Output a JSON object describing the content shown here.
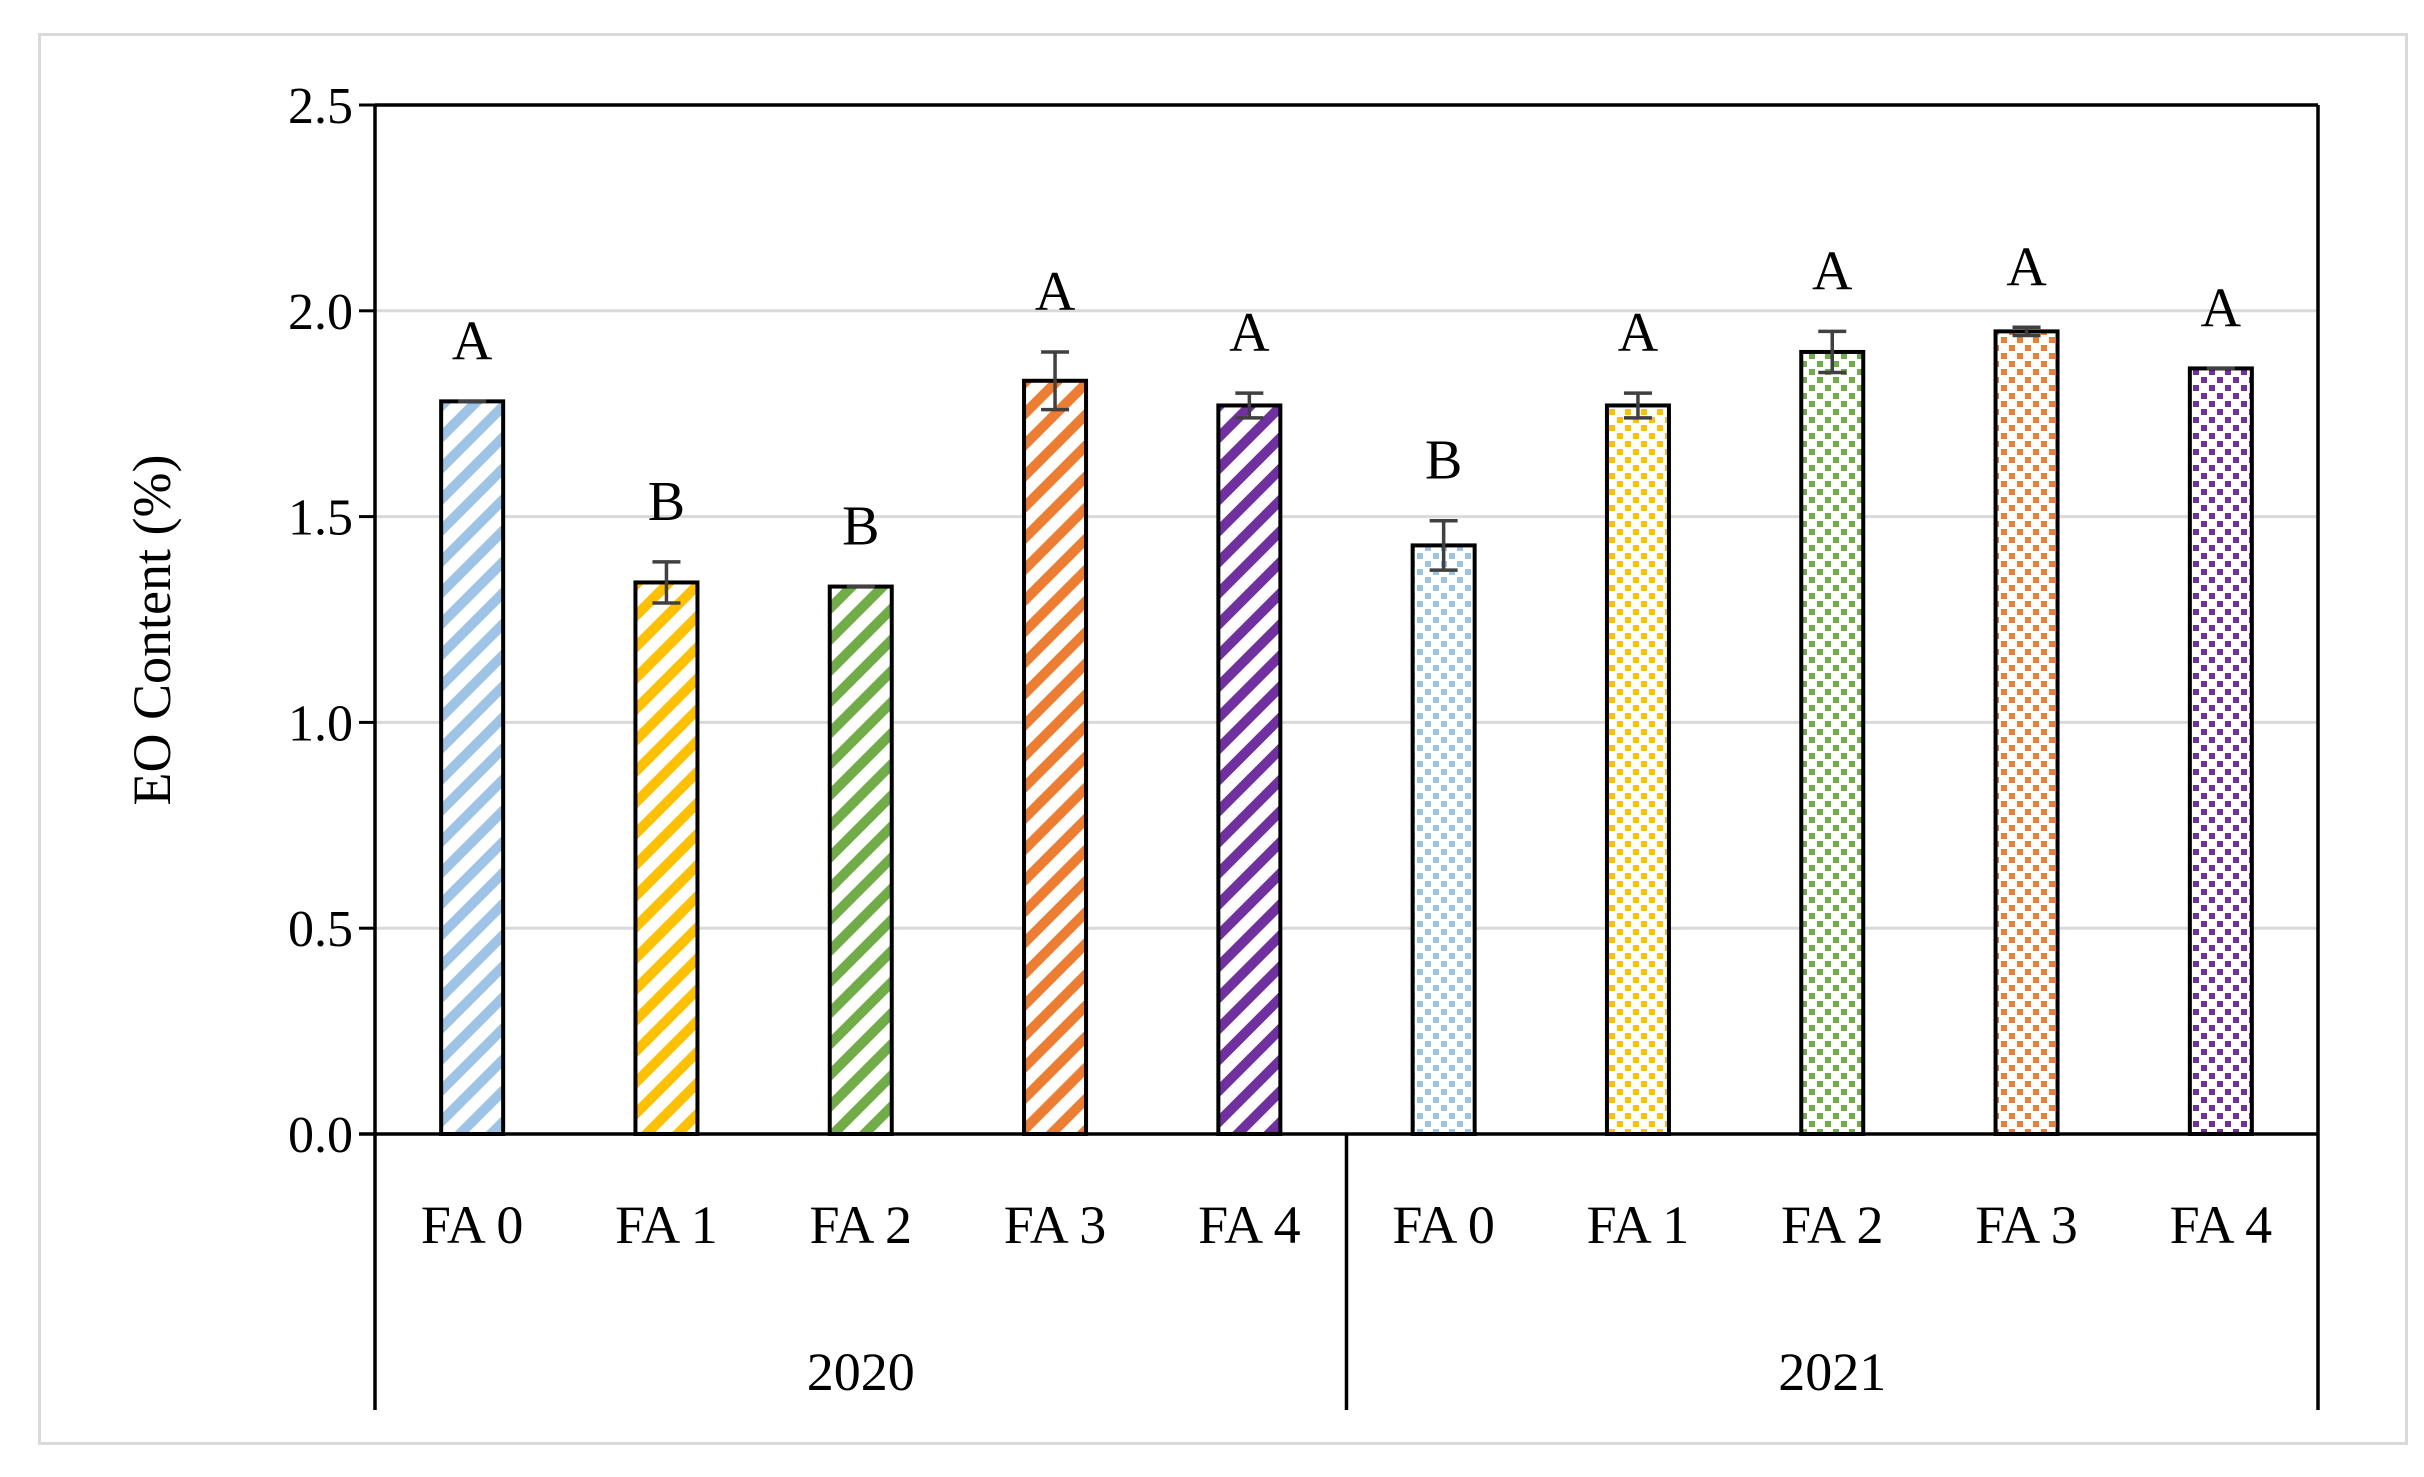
{
  "chart_data": {
    "type": "bar",
    "ylabel": "EO Content (%)",
    "ylim": [
      0,
      2.5
    ],
    "yticks": [
      "0.0",
      "0.5",
      "1.0",
      "1.5",
      "2.0",
      "2.5"
    ],
    "grid": true,
    "groups": [
      {
        "label": "2020",
        "bars": [
          {
            "category": "FA 0",
            "value": 1.78,
            "error": 0.0,
            "letter": "A",
            "color": "#9dc3e6",
            "pattern": "diagonal"
          },
          {
            "category": "FA 1",
            "value": 1.34,
            "error": 0.05,
            "letter": "B",
            "color": "#ffc000",
            "pattern": "diagonal"
          },
          {
            "category": "FA 2",
            "value": 1.33,
            "error": 0.0,
            "letter": "B",
            "color": "#70ad47",
            "pattern": "diagonal"
          },
          {
            "category": "FA 3",
            "value": 1.83,
            "error": 0.07,
            "letter": "A",
            "color": "#ed7d31",
            "pattern": "diagonal"
          },
          {
            "category": "FA 4",
            "value": 1.77,
            "error": 0.03,
            "letter": "A",
            "color": "#7030a0",
            "pattern": "diagonal"
          }
        ]
      },
      {
        "label": "2021",
        "bars": [
          {
            "category": "FA 0",
            "value": 1.43,
            "error": 0.06,
            "letter": "B",
            "color": "#9dc3e6",
            "pattern": "dotted"
          },
          {
            "category": "FA 1",
            "value": 1.77,
            "error": 0.03,
            "letter": "A",
            "color": "#ffc000",
            "pattern": "dotted"
          },
          {
            "category": "FA 2",
            "value": 1.9,
            "error": 0.05,
            "letter": "A",
            "color": "#70ad47",
            "pattern": "dotted"
          },
          {
            "category": "FA 3",
            "value": 1.95,
            "error": 0.01,
            "letter": "A",
            "color": "#ed7d31",
            "pattern": "dotted"
          },
          {
            "category": "FA 4",
            "value": 1.86,
            "error": 0.0,
            "letter": "A",
            "color": "#7030a0",
            "pattern": "dotted"
          }
        ]
      }
    ]
  }
}
